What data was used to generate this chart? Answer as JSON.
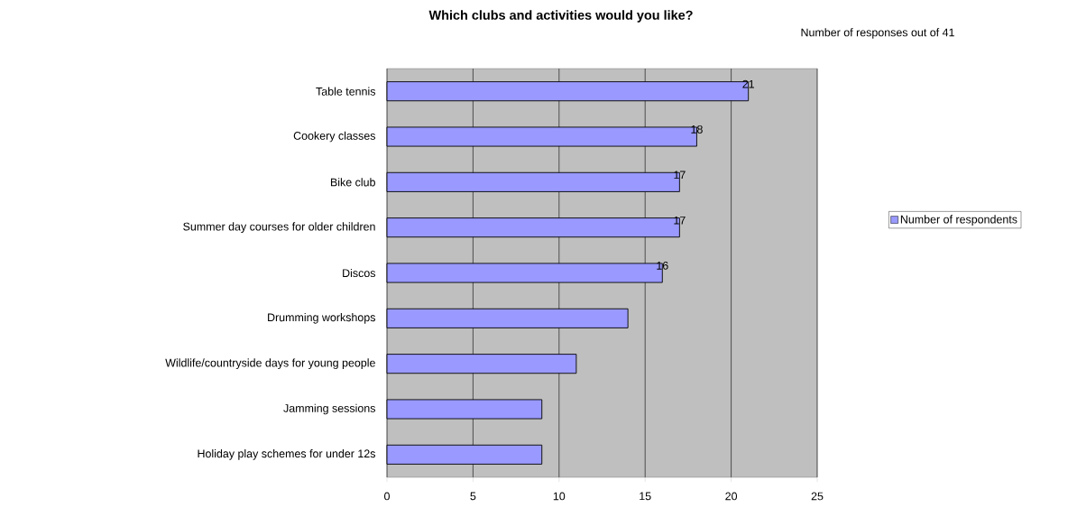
{
  "chart_data": {
    "type": "bar",
    "orientation": "horizontal",
    "title": "Which clubs and activities would you like?",
    "subtitle": "Number of responses out of 41",
    "categories": [
      "Table tennis",
      "Cookery classes",
      "Bike club",
      "Summer day courses for older children",
      "Discos",
      "Drumming workshops",
      "Wildlife/countryside days for young people",
      "Jamming sessions",
      "Holiday play schemes for under 12s"
    ],
    "series": [
      {
        "name": "Number of respondents",
        "color": "#9999ff",
        "values": [
          21,
          18,
          17,
          17,
          16,
          14,
          11,
          9,
          9
        ],
        "value_labels": [
          "21",
          "18",
          "17",
          "17",
          "16",
          null,
          null,
          null,
          null
        ]
      }
    ],
    "xlim": [
      0,
      25
    ],
    "xticks": [
      0,
      5,
      10,
      15,
      20,
      25
    ],
    "grid": "x",
    "legend": "right"
  }
}
